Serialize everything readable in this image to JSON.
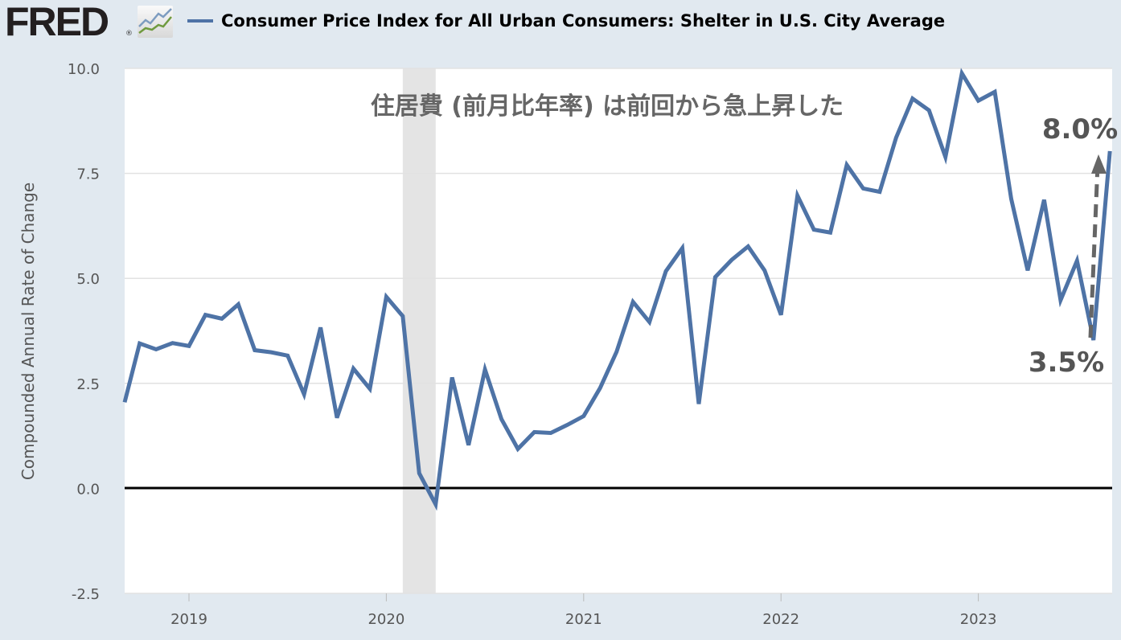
{
  "header": {
    "logo_text": "FRED",
    "series_title": "Consumer Price Index for All Urban Consumers: Shelter in U.S. City Average"
  },
  "colors": {
    "series": "#4e73a6",
    "recession": "#e4e4e4",
    "zero_line": "#000000",
    "annotation": "#666666"
  },
  "chart_data": {
    "type": "line",
    "title": "Consumer Price Index for All Urban Consumers: Shelter in U.S. City Average",
    "ylabel": "Compounded Annual Rate of Change",
    "xlabel": "",
    "ylim": [
      -2.5,
      10.0
    ],
    "yticks": [
      "-2.5",
      "0.0",
      "2.5",
      "5.0",
      "7.5",
      "10.0"
    ],
    "ytick_values": [
      -2.5,
      0,
      2.5,
      5,
      7.5,
      10
    ],
    "xticks": [
      "2019",
      "2020",
      "2021",
      "2022",
      "2023"
    ],
    "x_start": "2018-09",
    "x_end": "2023-09",
    "grid": true,
    "recession": {
      "start": "2020-02",
      "end": "2020-04"
    },
    "series": [
      {
        "name": "Consumer Price Index for All Urban Consumers: Shelter in U.S. City Average",
        "start": "2018-09",
        "frequency": "monthly",
        "values": [
          2.05,
          3.45,
          3.31,
          3.46,
          3.39,
          4.13,
          4.04,
          4.38,
          3.29,
          3.24,
          3.16,
          2.24,
          3.83,
          1.68,
          2.85,
          2.37,
          4.56,
          4.1,
          0.36,
          -0.38,
          2.64,
          1.03,
          2.83,
          1.65,
          0.94,
          1.34,
          1.32,
          1.51,
          1.72,
          2.39,
          3.25,
          4.44,
          3.96,
          5.17,
          5.72,
          2.01,
          5.03,
          5.44,
          5.76,
          5.19,
          4.13,
          6.97,
          6.16,
          6.09,
          7.7,
          7.14,
          7.06,
          8.35,
          9.28,
          9.0,
          7.89,
          9.88,
          9.23,
          9.44,
          6.89,
          5.19,
          6.87,
          4.48,
          5.42,
          3.53,
          8.03
        ]
      }
    ],
    "annotations": {
      "headline": "住居費 (前月比年率) は前回から急上昇した",
      "high_label": "8.0%",
      "low_label": "3.5%"
    }
  }
}
